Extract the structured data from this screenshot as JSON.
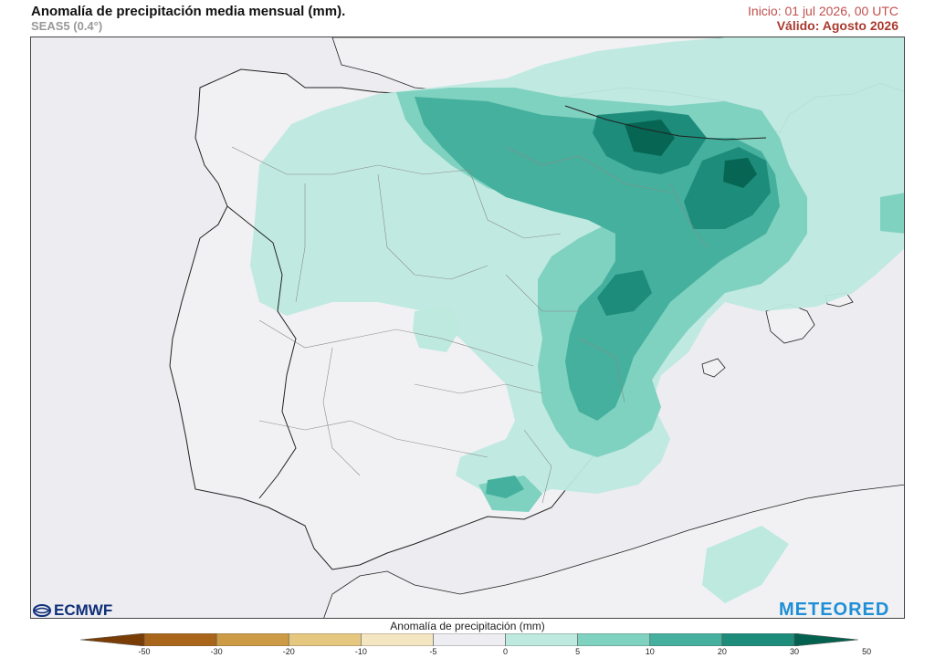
{
  "header": {
    "title": "Anomalía de precipitación media mensual (mm).",
    "subtitle": "SEAS5 (0.4°)",
    "init": "Inicio: 01 jul 2026, 00 UTC",
    "valid": "Válido: Agosto 2026"
  },
  "logos": {
    "ecmwf": "ECMWF",
    "meteored": "METEORED"
  },
  "legend": {
    "title": "Anomalía de precipitación (mm)",
    "ticks": [
      "-50",
      "-30",
      "-20",
      "-10",
      "-5",
      "0",
      "5",
      "10",
      "20",
      "30",
      "50"
    ],
    "colors": [
      "#7a3d05",
      "#a9661b",
      "#cd9b46",
      "#e6c77f",
      "#f5e6c2",
      "#eeeef2",
      "#bde9df",
      "#7fd1c0",
      "#45b09d",
      "#1d8c7a",
      "#05614f"
    ]
  },
  "map": {
    "colors": {
      "background": "#eeeef2",
      "sea": "#ececf1",
      "land": "#f1f1f3",
      "level5": "#bde9df",
      "level10": "#7fd1c0",
      "level20": "#45b09d",
      "level30": "#1d8c7a",
      "level50": "#05614f"
    }
  }
}
